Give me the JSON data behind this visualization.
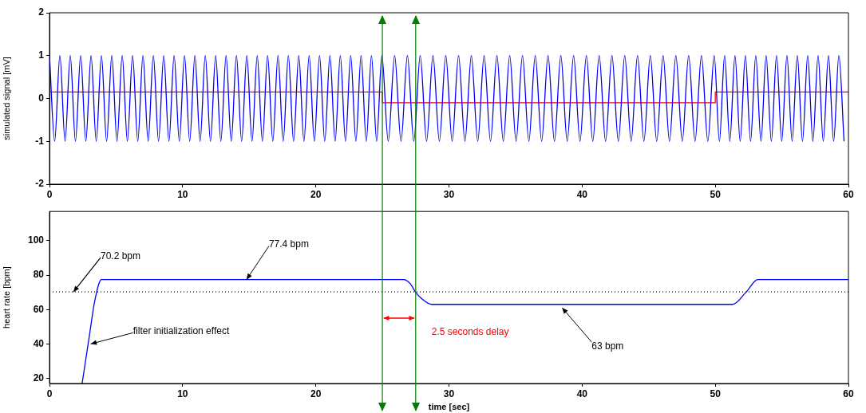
{
  "chart_data": [
    {
      "type": "line",
      "ylabel": "simulated signal [mV]",
      "xlim": [
        0,
        60
      ],
      "xticks": [
        0,
        10,
        20,
        30,
        40,
        50,
        60
      ],
      "ylim": [
        -2,
        2
      ],
      "yticks": [
        -2,
        -1,
        0,
        1,
        2
      ],
      "legend": false,
      "series": [
        {
          "color": "#0000ff",
          "x": [
            0,
            0.39,
            0.78,
            1.17,
            1.56,
            1.95,
            2.34,
            2.73,
            3.12,
            3.51,
            3.9,
            4.29,
            4.68,
            5.07,
            5.46,
            5.85,
            6.24,
            6.63,
            7.02,
            7.41,
            7.8,
            8.19,
            8.58,
            8.97,
            9.36,
            9.75,
            10.14,
            10.53,
            10.92,
            11.31,
            11.7,
            12.09,
            12.48,
            12.87,
            13.26,
            13.65,
            14.04,
            14.43,
            14.82,
            15.21,
            15.6,
            15.99,
            16.38,
            16.77,
            17.16,
            17.55,
            17.94,
            18.33,
            18.72,
            19.11,
            19.5,
            19.89,
            20.28,
            20.67,
            21.06,
            21.45,
            21.84,
            22.23,
            22.62,
            23.01,
            23.4,
            23.79,
            24.18,
            24.57,
            24.96,
            25.44,
            25.92,
            26.4,
            26.88,
            27.36,
            27.84,
            28.32,
            28.8,
            29.28,
            29.76,
            30.24,
            30.72,
            31.2,
            31.68,
            32.16,
            32.64,
            33.12,
            33.6,
            34.08,
            34.56,
            35.04,
            35.52,
            36,
            36.48,
            36.96,
            37.44,
            37.92,
            38.4,
            38.88,
            39.36,
            39.84,
            40.32,
            40.8,
            41.28,
            41.76,
            42.24,
            42.72,
            43.2,
            43.68,
            44.16,
            44.64,
            45.12,
            45.6,
            46.08,
            46.56,
            47.04,
            47.52,
            48,
            48.48,
            48.96,
            49.44,
            49.92,
            50.31,
            50.7,
            51.09,
            51.48,
            51.87,
            52.26,
            52.65,
            53.04,
            53.43,
            53.82,
            54.21,
            54.6,
            54.99,
            55.38,
            55.77,
            56.16,
            56.55,
            56.94,
            57.33,
            57.72,
            58.11,
            58.5,
            58.89,
            59.28,
            59.67
          ],
          "values": [
            1,
            -1,
            1,
            -1,
            1,
            -1,
            1,
            -1,
            1,
            -1,
            1,
            -1,
            1,
            -1,
            1,
            -1,
            1,
            -1,
            1,
            -1,
            1,
            -1,
            1,
            -1,
            1,
            -1,
            1,
            -1,
            1,
            -1,
            1,
            -1,
            1,
            -1,
            1,
            -1,
            1,
            -1,
            1,
            -1,
            1,
            -1,
            1,
            -1,
            1,
            -1,
            1,
            -1,
            1,
            -1,
            1,
            -1,
            1,
            -1,
            1,
            -1,
            1,
            -1,
            1,
            -1,
            1,
            -1,
            1,
            -1,
            1,
            -1,
            1,
            -1,
            1,
            -1,
            1,
            -1,
            1,
            -1,
            1,
            -1,
            1,
            -1,
            1,
            -1,
            1,
            -1,
            1,
            -1,
            1,
            -1,
            1,
            -1,
            1,
            -1,
            1,
            -1,
            1,
            -1,
            1,
            -1,
            1,
            -1,
            1,
            -1,
            1,
            -1,
            1,
            -1,
            1,
            -1,
            1,
            -1,
            1,
            -1,
            1,
            -1,
            1,
            -1,
            1,
            -1,
            1,
            -1,
            1,
            -1,
            1,
            -1,
            1,
            -1,
            1,
            -1,
            1,
            -1,
            1,
            -1,
            1,
            -1,
            1,
            -1,
            1,
            -1,
            1,
            -1,
            1,
            -1,
            1,
            -1
          ]
        },
        {
          "type": "step",
          "color": "#ff0000",
          "x": [
            0,
            25,
            50,
            60
          ],
          "values": [
            0.15,
            -0.1,
            0.15,
            0.15
          ]
        }
      ],
      "ref_lines": [
        {
          "axis": "x",
          "value": 25,
          "color": "#008000"
        },
        {
          "axis": "x",
          "value": 27.5,
          "color": "#008000"
        }
      ]
    },
    {
      "type": "line",
      "xlabel": "time [sec]",
      "ylabel": "heart rate [bpm]",
      "xlim": [
        0,
        60
      ],
      "xticks": [
        0,
        10,
        20,
        30,
        40,
        50,
        60
      ],
      "ylim": [
        17,
        117
      ],
      "yticks": [
        20,
        40,
        60,
        80,
        100
      ],
      "legend": false,
      "series": [
        {
          "color": "#0000ff",
          "x": [
            2.45,
            3,
            3.4,
            3.9,
            26.6,
            27.1,
            27.5,
            28,
            28.7,
            51.3,
            52.3,
            53.2,
            60
          ],
          "values": [
            17,
            45,
            65,
            77.4,
            77.4,
            75,
            70,
            66,
            63,
            63,
            70,
            77.4,
            77.4
          ]
        }
      ],
      "ref_lines": [
        {
          "axis": "y",
          "value": 70.2,
          "label": "70.2 bpm",
          "color": "#000000",
          "line_style": "dotted"
        },
        {
          "axis": "x",
          "value": 25,
          "color": "#008000"
        },
        {
          "axis": "x",
          "value": 27.5,
          "color": "#008000"
        }
      ],
      "annotations": [
        {
          "text": "77.4 bpm",
          "x": 14.8,
          "y": 77.4
        },
        {
          "text": "filter initialization effect",
          "x": 3.1,
          "y": 40
        },
        {
          "text": "63 bpm",
          "x": 38.5,
          "y": 61
        },
        "2.5 seconds delay"
      ]
    }
  ]
}
